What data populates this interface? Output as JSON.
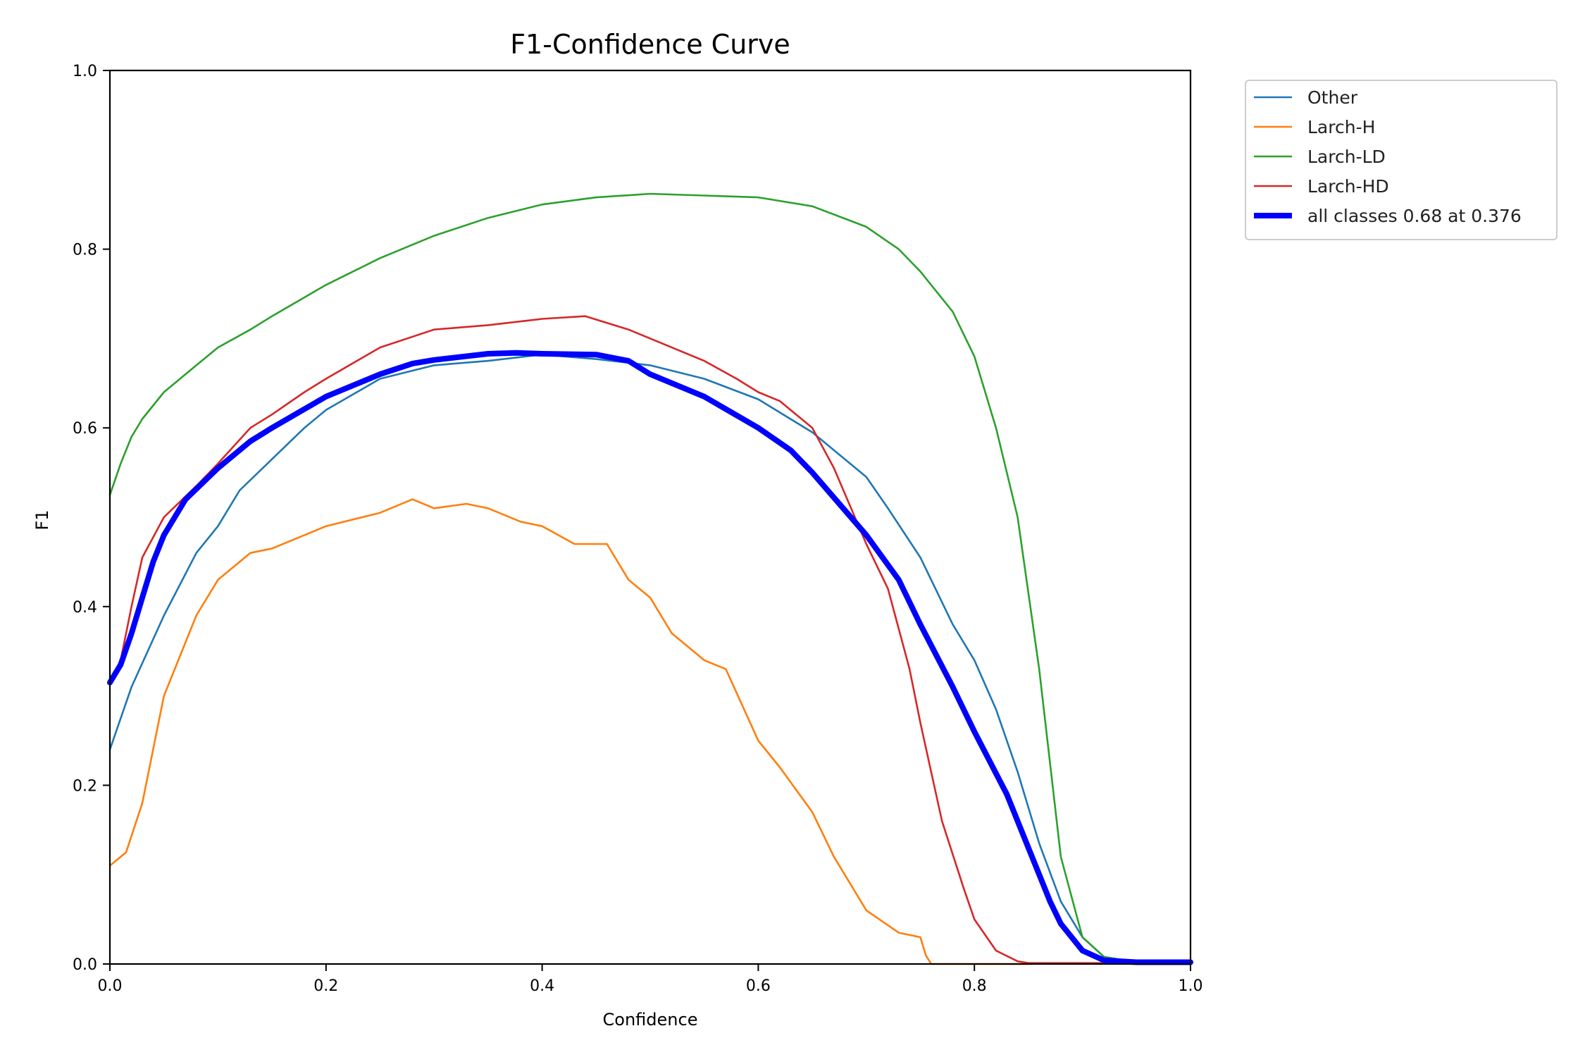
{
  "chart_data": {
    "type": "line",
    "title": "F1-Confidence Curve",
    "xlabel": "Confidence",
    "ylabel": "F1",
    "xlim": [
      0,
      1
    ],
    "ylim": [
      0,
      1
    ],
    "xticks": [
      "0.0",
      "0.2",
      "0.4",
      "0.6",
      "0.8",
      "1.0"
    ],
    "yticks": [
      "0.0",
      "0.2",
      "0.4",
      "0.6",
      "0.8",
      "1.0"
    ],
    "grid": false,
    "legend_position": "outside-top-right",
    "series": [
      {
        "name": "Other",
        "color": "#1f77b4",
        "width": "thin",
        "x": [
          0.0,
          0.02,
          0.05,
          0.08,
          0.1,
          0.12,
          0.15,
          0.18,
          0.2,
          0.25,
          0.3,
          0.35,
          0.4,
          0.45,
          0.5,
          0.55,
          0.6,
          0.65,
          0.7,
          0.72,
          0.75,
          0.78,
          0.8,
          0.82,
          0.84,
          0.86,
          0.88,
          0.9,
          0.92,
          0.95,
          1.0
        ],
        "y": [
          0.24,
          0.31,
          0.39,
          0.46,
          0.49,
          0.53,
          0.565,
          0.6,
          0.62,
          0.655,
          0.67,
          0.675,
          0.682,
          0.677,
          0.67,
          0.655,
          0.632,
          0.595,
          0.545,
          0.51,
          0.455,
          0.38,
          0.34,
          0.285,
          0.215,
          0.135,
          0.07,
          0.03,
          0.008,
          0.002,
          0.002
        ]
      },
      {
        "name": "Larch-H",
        "color": "#ff7f0e",
        "width": "thin",
        "x": [
          0.0,
          0.015,
          0.03,
          0.05,
          0.08,
          0.1,
          0.13,
          0.15,
          0.18,
          0.2,
          0.25,
          0.28,
          0.3,
          0.33,
          0.35,
          0.38,
          0.4,
          0.43,
          0.46,
          0.48,
          0.5,
          0.52,
          0.55,
          0.57,
          0.6,
          0.62,
          0.65,
          0.67,
          0.7,
          0.73,
          0.75,
          0.755,
          0.76,
          0.8,
          0.85
        ],
        "y": [
          0.11,
          0.125,
          0.18,
          0.3,
          0.39,
          0.43,
          0.46,
          0.465,
          0.48,
          0.49,
          0.505,
          0.52,
          0.51,
          0.515,
          0.51,
          0.495,
          0.49,
          0.47,
          0.47,
          0.43,
          0.41,
          0.37,
          0.34,
          0.33,
          0.25,
          0.22,
          0.17,
          0.12,
          0.06,
          0.035,
          0.03,
          0.01,
          0.0,
          0.0,
          0.0
        ]
      },
      {
        "name": "Larch-LD",
        "color": "#2ca02c",
        "width": "thin",
        "x": [
          0.0,
          0.01,
          0.02,
          0.03,
          0.05,
          0.08,
          0.1,
          0.13,
          0.15,
          0.2,
          0.25,
          0.3,
          0.35,
          0.4,
          0.45,
          0.5,
          0.55,
          0.6,
          0.65,
          0.7,
          0.73,
          0.75,
          0.78,
          0.8,
          0.82,
          0.84,
          0.86,
          0.88,
          0.9,
          0.92,
          0.95,
          1.0
        ],
        "y": [
          0.525,
          0.56,
          0.59,
          0.61,
          0.64,
          0.67,
          0.69,
          0.71,
          0.725,
          0.76,
          0.79,
          0.815,
          0.835,
          0.85,
          0.858,
          0.862,
          0.86,
          0.858,
          0.848,
          0.825,
          0.8,
          0.775,
          0.73,
          0.68,
          0.6,
          0.5,
          0.33,
          0.12,
          0.03,
          0.008,
          0.002,
          0.002
        ]
      },
      {
        "name": "Larch-HD",
        "color": "#d62728",
        "width": "thin",
        "x": [
          0.0,
          0.01,
          0.02,
          0.03,
          0.05,
          0.08,
          0.1,
          0.13,
          0.15,
          0.18,
          0.2,
          0.25,
          0.3,
          0.35,
          0.4,
          0.44,
          0.48,
          0.52,
          0.55,
          0.58,
          0.6,
          0.62,
          0.65,
          0.67,
          0.7,
          0.72,
          0.74,
          0.75,
          0.77,
          0.79,
          0.8,
          0.82,
          0.84,
          0.85,
          0.9,
          1.0
        ],
        "y": [
          0.315,
          0.34,
          0.4,
          0.455,
          0.5,
          0.535,
          0.56,
          0.6,
          0.615,
          0.64,
          0.655,
          0.69,
          0.71,
          0.715,
          0.722,
          0.725,
          0.71,
          0.69,
          0.675,
          0.655,
          0.64,
          0.63,
          0.6,
          0.555,
          0.47,
          0.42,
          0.33,
          0.27,
          0.16,
          0.085,
          0.05,
          0.015,
          0.003,
          0.001,
          0.001,
          0.001
        ]
      },
      {
        "name": "all classes 0.68 at 0.376",
        "color": "#0000ff",
        "width": "thick",
        "x": [
          0.0,
          0.01,
          0.02,
          0.03,
          0.04,
          0.05,
          0.07,
          0.1,
          0.13,
          0.15,
          0.2,
          0.25,
          0.28,
          0.3,
          0.35,
          0.376,
          0.4,
          0.45,
          0.48,
          0.5,
          0.55,
          0.6,
          0.63,
          0.65,
          0.7,
          0.73,
          0.75,
          0.78,
          0.8,
          0.83,
          0.85,
          0.87,
          0.88,
          0.9,
          0.92,
          0.95,
          1.0
        ],
        "y": [
          0.315,
          0.335,
          0.37,
          0.41,
          0.45,
          0.48,
          0.52,
          0.555,
          0.585,
          0.6,
          0.635,
          0.66,
          0.672,
          0.676,
          0.683,
          0.684,
          0.683,
          0.682,
          0.675,
          0.66,
          0.635,
          0.6,
          0.575,
          0.55,
          0.48,
          0.43,
          0.38,
          0.31,
          0.26,
          0.19,
          0.13,
          0.07,
          0.045,
          0.015,
          0.004,
          0.002,
          0.002
        ]
      }
    ]
  }
}
